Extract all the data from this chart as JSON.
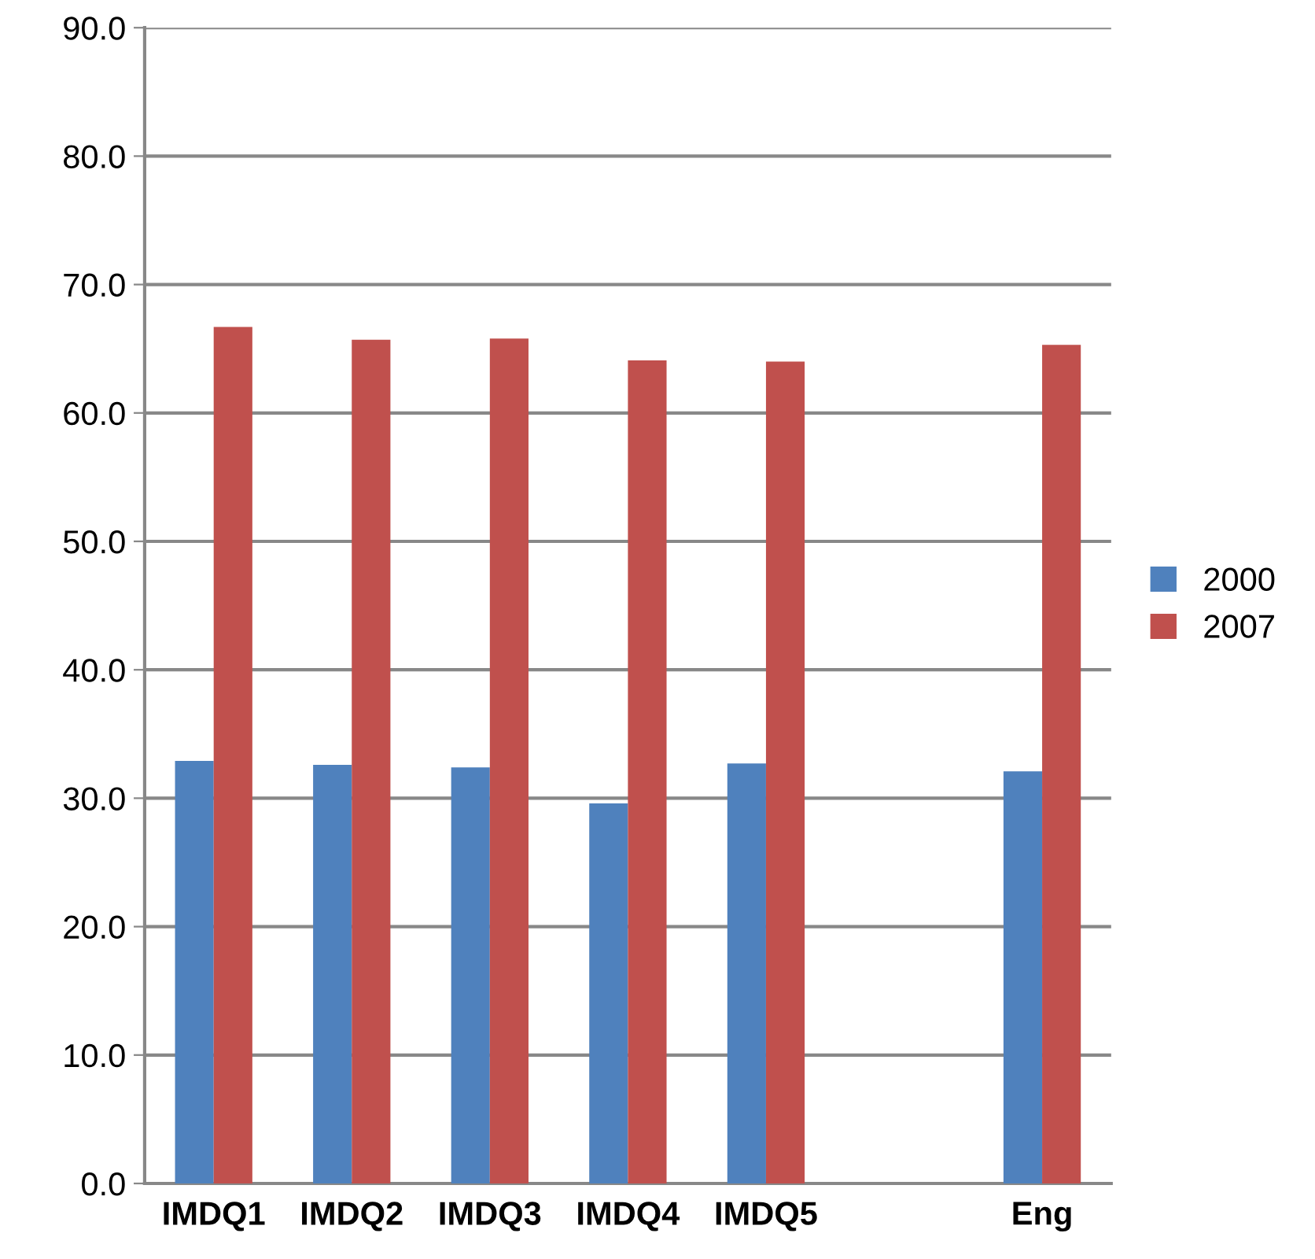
{
  "chart_data": {
    "type": "bar",
    "categories": [
      "IMDQ1",
      "IMDQ2",
      "IMDQ3",
      "IMDQ4",
      "IMDQ5",
      null,
      "Eng"
    ],
    "series": [
      {
        "name": "2000",
        "color": "#4f81bd",
        "values": [
          32.9,
          32.6,
          32.4,
          29.6,
          32.7,
          null,
          32.1
        ]
      },
      {
        "name": "2007",
        "color": "#c0504d",
        "values": [
          66.7,
          65.7,
          65.8,
          64.1,
          64.0,
          null,
          65.3
        ]
      }
    ],
    "ylim": [
      0,
      90
    ],
    "yticks": [
      {
        "value": 0,
        "label": "0.0"
      },
      {
        "value": 10,
        "label": "10.0"
      },
      {
        "value": 20,
        "label": "20.0"
      },
      {
        "value": 30,
        "label": "30.0"
      },
      {
        "value": 40,
        "label": "40.0"
      },
      {
        "value": 50,
        "label": "50.0"
      },
      {
        "value": 60,
        "label": "60.0"
      },
      {
        "value": 70,
        "label": "70.0"
      },
      {
        "value": 80,
        "label": "80.0"
      },
      {
        "value": 90,
        "label": "90.0"
      }
    ],
    "grid": "y",
    "legend": "right"
  }
}
